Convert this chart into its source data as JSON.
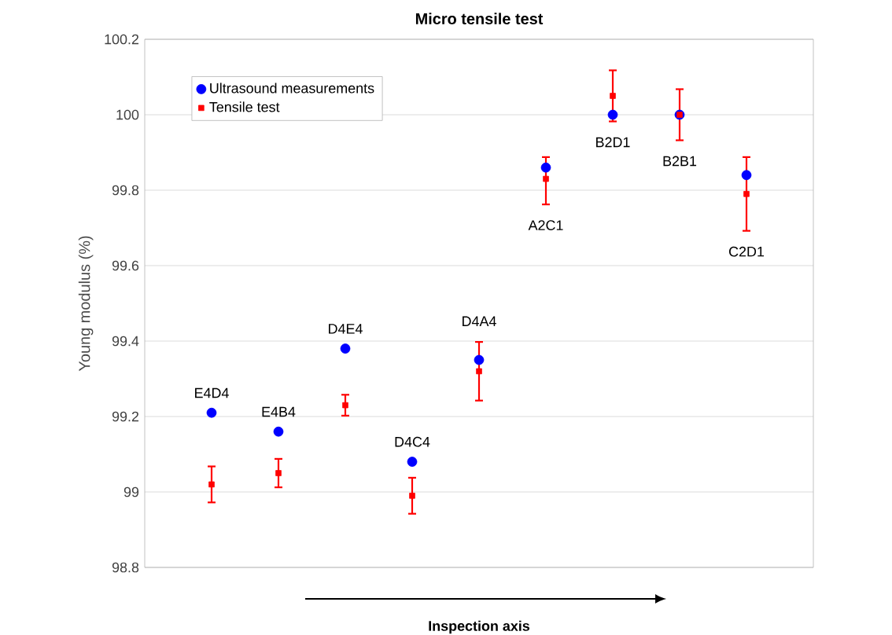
{
  "chart_data": {
    "type": "scatter",
    "title": "Micro tensile test",
    "xlabel": "Inspection axis",
    "ylabel": "Young modulus (%)",
    "categories": [
      null,
      null,
      null,
      null,
      null,
      null,
      null,
      null,
      null
    ],
    "series": [
      {
        "name": "Ultrasound measurements",
        "color": "#0000ff",
        "marker": "circle",
        "values": [
          99.21,
          99.16,
          99.38,
          99.08,
          99.35,
          99.86,
          100.0,
          100.0,
          99.84
        ]
      },
      {
        "name": "Tensile test",
        "color": "#ff0000",
        "marker": "square",
        "values": [
          99.02,
          99.05,
          99.23,
          98.99,
          99.32,
          99.83,
          100.05,
          100.0,
          99.79
        ],
        "errors": [
          [
            98.97,
            99.07
          ],
          [
            99.01,
            99.09
          ],
          [
            99.2,
            99.26
          ],
          [
            98.94,
            99.04
          ],
          [
            99.24,
            99.4
          ],
          [
            99.76,
            99.89
          ],
          [
            99.98,
            100.12
          ],
          [
            99.93,
            100.07
          ],
          [
            99.69,
            99.89
          ]
        ]
      }
    ],
    "annotations": [
      "E4D4",
      "E4B4",
      "D4E4",
      "D4C4",
      "D4A4",
      "A2C1",
      "B2D1",
      "B2B1",
      "C2D1"
    ],
    "ylim": [
      98.8,
      100.2
    ],
    "yticks": [
      98.8,
      99,
      99.2,
      99.4,
      99.6,
      99.8,
      100,
      100.2
    ],
    "grid": "y",
    "legend": "top left",
    "tick_labels": "y"
  }
}
